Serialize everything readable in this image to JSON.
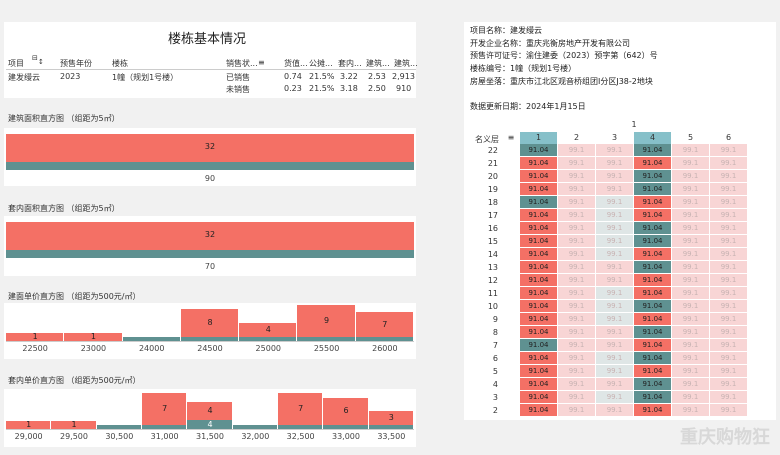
{
  "summary": {
    "title": "楼栋基本情况",
    "headers": [
      "项目",
      "预售年份",
      "楼栋",
      "销售状...",
      "货值...",
      "公摊...",
      "套内...",
      "建筑...",
      "建筑..."
    ],
    "project": "建发缦云",
    "year": "2023",
    "building": "1幢（规划1号楼）",
    "rows": [
      {
        "status": "已销售",
        "v1": "0.74",
        "v2": "21.5%",
        "v3": "3.22",
        "v4": "2.53",
        "v5": "2,913"
      },
      {
        "status": "未销售",
        "v1": "0.23",
        "v2": "21.5%",
        "v3": "3.18",
        "v4": "2.50",
        "v5": "910"
      }
    ]
  },
  "hist1": {
    "title": "建筑面积直方图 （组距为5㎡）",
    "value_label": "32",
    "axis": "90"
  },
  "hist2": {
    "title": "套内面积直方图 （组距为5㎡）",
    "value_label": "32",
    "axis": "70"
  },
  "hist3": {
    "title": "建面单价直方图 （组距为500元/㎡）",
    "bins": [
      {
        "x": "22500",
        "r": 1,
        "t": 0
      },
      {
        "x": "23000",
        "r": 1,
        "t": 0
      },
      {
        "x": "24000",
        "r": 0,
        "t": 1
      },
      {
        "x": "24500",
        "r": 8,
        "t": 1
      },
      {
        "x": "25000",
        "r": 4,
        "t": 1
      },
      {
        "x": "25500",
        "r": 9,
        "t": 1
      },
      {
        "x": "26000",
        "r": 7,
        "t": 1
      }
    ],
    "labels": [
      "1",
      "1",
      "",
      "8",
      "4",
      "9",
      "7"
    ]
  },
  "hist4": {
    "title": "套内单价直方图 （组距为500元/㎡）",
    "bins": [
      {
        "x": "29,000",
        "r": 1,
        "t": 0
      },
      {
        "x": "29,500",
        "r": 1,
        "t": 0
      },
      {
        "x": "30,500",
        "r": 0,
        "t": 1
      },
      {
        "x": "31,000",
        "r": 7,
        "t": 1
      },
      {
        "x": "31,500",
        "r": 4,
        "t": 4
      },
      {
        "x": "32,000",
        "r": 0,
        "t": 1
      },
      {
        "x": "32,500",
        "r": 7,
        "t": 1
      },
      {
        "x": "33,000",
        "r": 6,
        "t": 1
      },
      {
        "x": "33,500",
        "r": 3,
        "t": 1
      }
    ],
    "labels": [
      "1",
      "1",
      "",
      "7",
      "4",
      "",
      "7",
      "6",
      "3"
    ],
    "labels_teal": [
      "",
      "",
      "",
      "",
      "4",
      "",
      "",
      "",
      ""
    ]
  },
  "project_info": {
    "lines": [
      "项目名称：建发缦云",
      "开发企业名称：重庆兆衡房地产开发有限公司",
      "预售许可证号：渝住建委（2023）预字第（642）号",
      "楼栋编号：1幢（规划1号楼）",
      "房屋坐落：重庆市江北区观音桥组团I分区J38-2地块",
      "",
      "数据更新日期：2024年1月15日"
    ]
  },
  "grid": {
    "unit_header": "1",
    "floor_header": "名义层",
    "columns": [
      "1",
      "2",
      "3",
      "4",
      "5",
      "6"
    ],
    "floors": [
      "22",
      "21",
      "20",
      "19",
      "18",
      "17",
      "16",
      "15",
      "14",
      "13",
      "12",
      "11",
      "10",
      "9",
      "8",
      "7",
      "6",
      "5",
      "4",
      "3",
      "2"
    ],
    "val_a": "91.04",
    "val_b": "99.1"
  },
  "watermark": "重庆购物狂"
}
